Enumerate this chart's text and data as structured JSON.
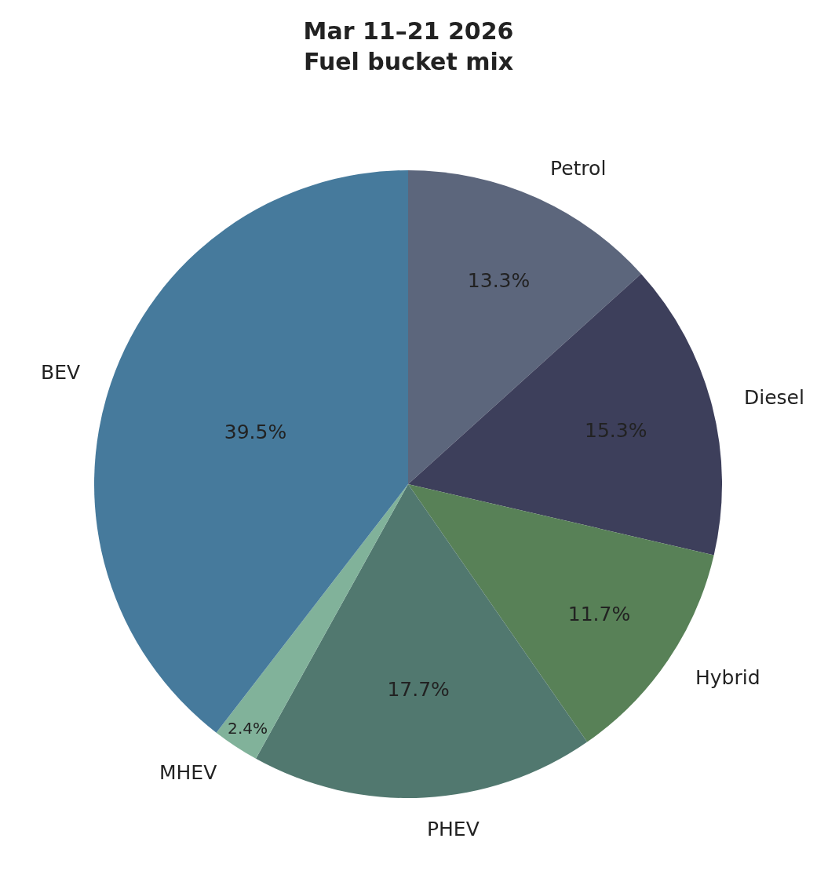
{
  "chart_data": {
    "type": "pie",
    "title": "Mar 11–21 2026\nFuel bucket mix",
    "categories": [
      "Petrol",
      "Diesel",
      "Hybrid",
      "PHEV",
      "MHEV",
      "BEV"
    ],
    "values": [
      13.3,
      15.3,
      11.7,
      17.7,
      2.4,
      39.5
    ],
    "value_labels": [
      "13.3%",
      "15.3%",
      "11.7%",
      "17.7%",
      "2.4%",
      "39.5%"
    ],
    "colors": [
      "#5c667c",
      "#3d3f5b",
      "#588157",
      "#51786f",
      "#81b29a",
      "#467a9c"
    ],
    "legend": false
  }
}
